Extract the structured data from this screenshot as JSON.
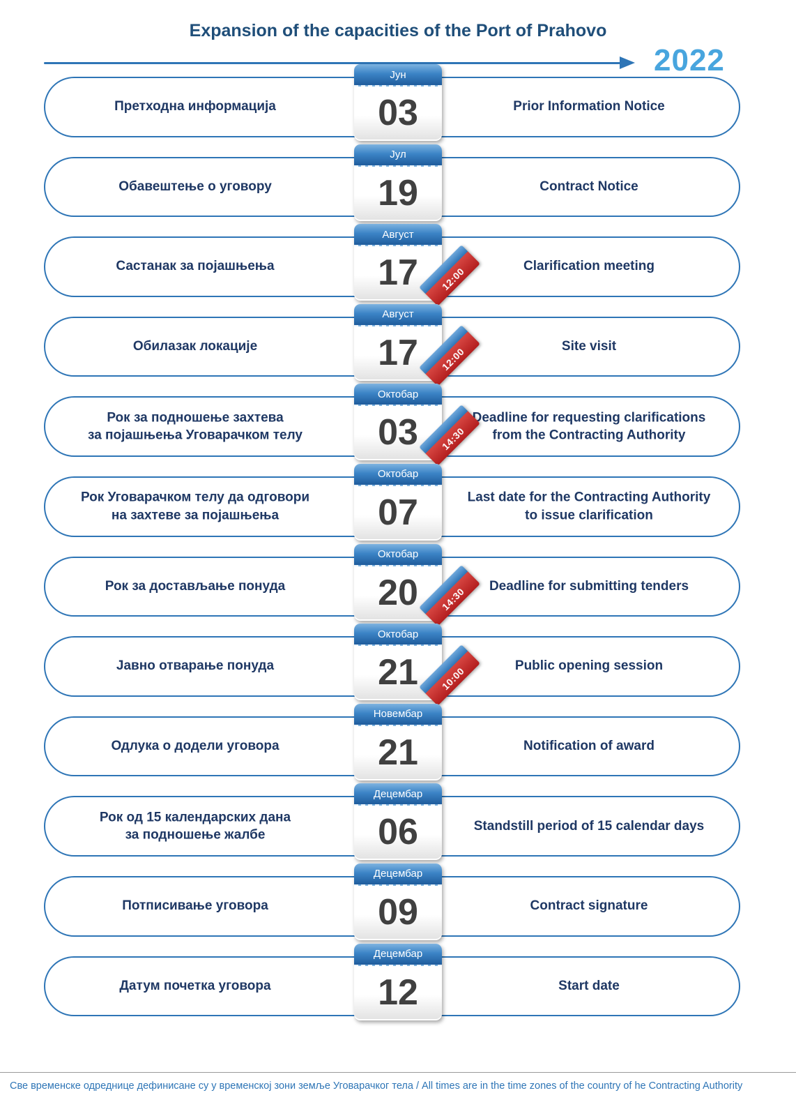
{
  "title": "Expansion of the capacities of the Port of Prahovo",
  "year": "2022",
  "footer": "Све временске одреднице дефинисане су у временској зони земље Уговарачког тела / All times are in the time zones of the country of he Contracting Authority",
  "colors": {
    "accent_blue": "#2E75B6",
    "navy_text": "#1F3864",
    "year_blue": "#48A5DE",
    "ribbon_red": "#C00000",
    "day_gray": "#404040"
  },
  "events": [
    {
      "label_sr": "Претходна информација",
      "month": "Јун",
      "day": "03",
      "time": "",
      "label_en": "Prior Information Notice"
    },
    {
      "label_sr": "Обавештење о уговору",
      "month": "Јул",
      "day": "19",
      "time": "",
      "label_en": "Contract Notice"
    },
    {
      "label_sr": "Састанак за појашњења",
      "month": "Август",
      "day": "17",
      "time": "12:00",
      "label_en": "Clarification meeting"
    },
    {
      "label_sr": "Обилазак локације",
      "month": "Август",
      "day": "17",
      "time": "12:00",
      "label_en": "Site visit"
    },
    {
      "label_sr": "Рок за подношење захтева\nза појашњења Уговарачком телу",
      "month": "Октобар",
      "day": "03",
      "time": "14:30",
      "label_en": "Deadline for requesting clarifications\nfrom the Contracting Authority"
    },
    {
      "label_sr": "Рок Уговарачком телу да одговори\nна захтеве за појашњења",
      "month": "Октобар",
      "day": "07",
      "time": "",
      "label_en": "Last date for the Contracting Authority\nto issue clarification"
    },
    {
      "label_sr": "Рок за достављање понуда",
      "month": "Октобар",
      "day": "20",
      "time": "14:30",
      "label_en": "Deadline for submitting tenders"
    },
    {
      "label_sr": "Јавно отварање понуда",
      "month": "Октобар",
      "day": "21",
      "time": "10:00",
      "label_en": "Public opening session"
    },
    {
      "label_sr": "Одлука о додели уговора",
      "month": "Новембар",
      "day": "21",
      "time": "",
      "label_en": "Notification of award"
    },
    {
      "label_sr": "Рок од 15 календарских дана\nза подношење жалбе",
      "month": "Децембар",
      "day": "06",
      "time": "",
      "label_en": "Standstill period of 15 calendar days"
    },
    {
      "label_sr": "Потписивање уговора",
      "month": "Децембар",
      "day": "09",
      "time": "",
      "label_en": "Contract signature"
    },
    {
      "label_sr": "Датум почетка уговора",
      "month": "Децембар",
      "day": "12",
      "time": "",
      "label_en": "Start date"
    }
  ]
}
